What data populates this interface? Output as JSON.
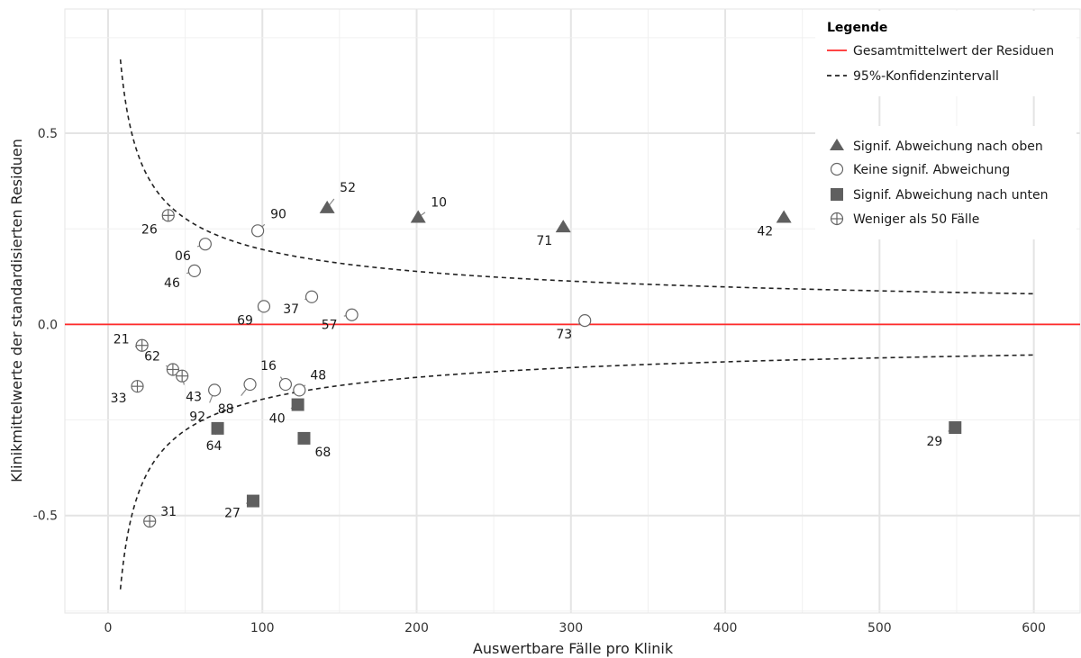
{
  "chart_data": {
    "type": "scatter",
    "xlabel": "Auswertbare Fälle pro Klinik",
    "ylabel": "Klinikmittelwerte der standardisierten Residuen",
    "xlim": [
      -28,
      630
    ],
    "ylim": [
      -0.755,
      0.825
    ],
    "x_ticks": [
      0,
      100,
      200,
      300,
      400,
      500,
      600
    ],
    "x_tick_labels": [
      "0",
      "100",
      "200",
      "300",
      "400",
      "500",
      "600"
    ],
    "y_ticks": [
      -0.5,
      0.0,
      0.5
    ],
    "y_tick_labels": [
      "-0.5",
      "0.0",
      "0.5"
    ],
    "grid": true,
    "mean_line": {
      "value": 0.0,
      "color": "#ff2a2a"
    },
    "confidence_interval": {
      "level": "95%",
      "x_from": 8,
      "x_to": 600,
      "form": "±1.96·sd/√n",
      "sd": 1.0
    },
    "colors": {
      "mean": "#ff2a2a",
      "marker_fill": "#5f5f5f",
      "marker_hollow": "#666666",
      "ci": "#222222",
      "grid_major": "#e4e4e4",
      "grid_minor": "#f0f0f0"
    },
    "legend": {
      "title": "Legende",
      "placement": "top-right",
      "lines": [
        {
          "key": "mean",
          "label": "Gesamtmittelwert der Residuen",
          "style": "solid"
        },
        {
          "key": "ci",
          "label": "95%-Konfidenzintervall",
          "style": "dashed"
        }
      ],
      "symbols": [
        {
          "key": "up",
          "label": "Signif. Abweichung nach oben",
          "marker": "triangle"
        },
        {
          "key": "none",
          "label": "Keine signif. Abweichung",
          "marker": "circle"
        },
        {
          "key": "down",
          "label": "Signif. Abweichung nach unten",
          "marker": "square"
        },
        {
          "key": "few",
          "label": "Weniger als 50 Fälle",
          "marker": "circle-plus"
        }
      ]
    },
    "points": [
      {
        "label": "52",
        "x": 142,
        "y": 0.305,
        "cat": "up"
      },
      {
        "label": "10",
        "x": 201,
        "y": 0.28,
        "cat": "up"
      },
      {
        "label": "71",
        "x": 295,
        "y": 0.255,
        "cat": "up"
      },
      {
        "label": "42",
        "x": 438,
        "y": 0.28,
        "cat": "up"
      },
      {
        "label": "90",
        "x": 97,
        "y": 0.245,
        "cat": "none"
      },
      {
        "label": "06",
        "x": 63,
        "y": 0.21,
        "cat": "none"
      },
      {
        "label": "46",
        "x": 56,
        "y": 0.14,
        "cat": "none"
      },
      {
        "label": "37",
        "x": 132,
        "y": 0.072,
        "cat": "none"
      },
      {
        "label": "69",
        "x": 101,
        "y": 0.047,
        "cat": "none"
      },
      {
        "label": "57",
        "x": 158,
        "y": 0.025,
        "cat": "none"
      },
      {
        "label": "73",
        "x": 309,
        "y": 0.01,
        "cat": "none"
      },
      {
        "label": "92",
        "x": 69,
        "y": -0.172,
        "cat": "none"
      },
      {
        "label": "88",
        "x": 92,
        "y": -0.157,
        "cat": "none"
      },
      {
        "label": "16",
        "x": 115,
        "y": -0.157,
        "cat": "none"
      },
      {
        "label": "48",
        "x": 124,
        "y": -0.172,
        "cat": "none"
      },
      {
        "label": "40",
        "x": 123,
        "y": -0.21,
        "cat": "down"
      },
      {
        "label": "64",
        "x": 71,
        "y": -0.272,
        "cat": "down"
      },
      {
        "label": "68",
        "x": 127,
        "y": -0.298,
        "cat": "down"
      },
      {
        "label": "27",
        "x": 94,
        "y": -0.462,
        "cat": "down"
      },
      {
        "label": "29",
        "x": 549,
        "y": -0.27,
        "cat": "down"
      },
      {
        "label": "26",
        "x": 39,
        "y": 0.285,
        "cat": "few"
      },
      {
        "label": "21",
        "x": 22,
        "y": -0.055,
        "cat": "few"
      },
      {
        "label": "62",
        "x": 42,
        "y": -0.118,
        "cat": "few"
      },
      {
        "label": "43",
        "x": 48,
        "y": -0.135,
        "cat": "few"
      },
      {
        "label": "33",
        "x": 19,
        "y": -0.162,
        "cat": "few"
      },
      {
        "label": "31",
        "x": 27,
        "y": -0.515,
        "cat": "few"
      }
    ]
  }
}
